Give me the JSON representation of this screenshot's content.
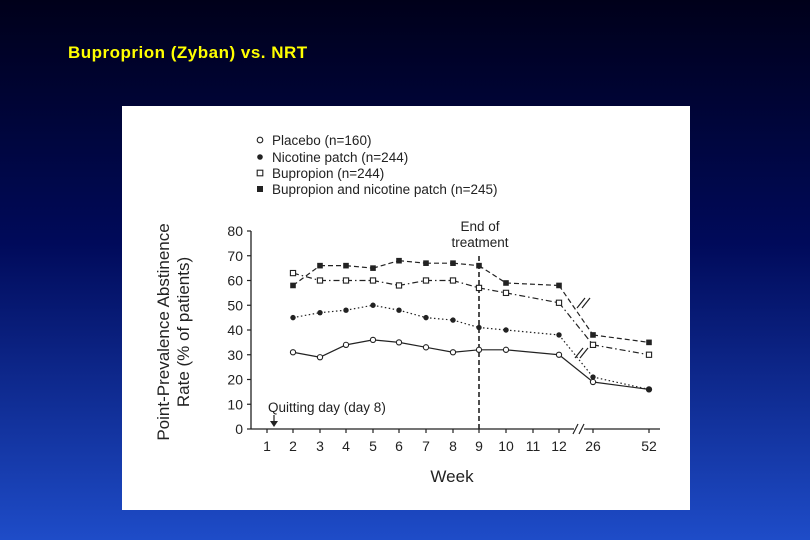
{
  "slide": {
    "title": "Buproprion (Zyban) vs. NRT"
  },
  "colors": {
    "title": "#ffff00",
    "line": "#222222",
    "figure_bg": "#ffffff"
  },
  "chart_data": {
    "type": "line",
    "title": "",
    "xlabel": "Week",
    "ylabel_line1": "Point-Prevalence Abstinence",
    "ylabel_line2": "Rate (% of patients)",
    "ylim": [
      0,
      80
    ],
    "yticks": [
      "0",
      "10",
      "20",
      "30",
      "40",
      "50",
      "60",
      "70",
      "80"
    ],
    "categories": [
      "1",
      "2",
      "3",
      "4",
      "5",
      "6",
      "7",
      "8",
      "9",
      "10",
      "11",
      "12",
      "26",
      "52"
    ],
    "annotations": {
      "end_of_treatment_line1": "End of",
      "end_of_treatment_line2": "treatment",
      "quitting_day": "Quitting day (day 8)"
    },
    "series": [
      {
        "name": "Placebo (n=160)",
        "marker": "open-circle",
        "dash": "solid",
        "values": [
          null,
          31,
          29,
          34,
          36,
          35,
          33,
          31,
          32,
          32,
          null,
          30,
          19,
          16
        ]
      },
      {
        "name": "Nicotine patch (n=244)",
        "marker": "filled-circle",
        "dash": "dotted",
        "values": [
          null,
          45,
          47,
          48,
          50,
          48,
          45,
          44,
          41,
          40,
          null,
          38,
          21,
          16
        ]
      },
      {
        "name": "Bupropion (n=244)",
        "marker": "open-square",
        "dash": "dashdot",
        "values": [
          null,
          63,
          60,
          60,
          60,
          58,
          60,
          60,
          57,
          55,
          null,
          51,
          34,
          30
        ]
      },
      {
        "name": "Bupropion and nicotine patch (n=245)",
        "marker": "filled-square",
        "dash": "dashed",
        "values": [
          null,
          58,
          66,
          66,
          65,
          68,
          67,
          67,
          66,
          59,
          null,
          58,
          38,
          35
        ]
      }
    ]
  }
}
